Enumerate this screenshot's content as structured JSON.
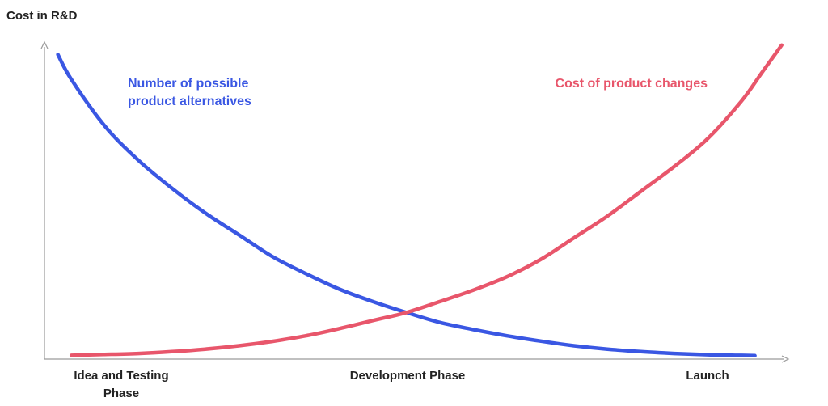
{
  "chart_data": {
    "type": "line",
    "title": "",
    "ylabel": "Cost in R&D",
    "xlabel": "",
    "grid": false,
    "legend": "none",
    "x_tick_labels": [
      {
        "lines": [
          "Idea and Testing",
          "Phase"
        ],
        "x": 0
      },
      {
        "lines": [
          "Development Phase"
        ],
        "x": 0.5
      },
      {
        "lines": [
          "Launch"
        ],
        "x": 1
      }
    ],
    "xlim": [
      -0.04,
      1.07
    ],
    "ylim": [
      0,
      1.02
    ],
    "series": [
      {
        "label_lines": [
          "Number of possible",
          "product alternatives"
        ],
        "color": "#3a57e3",
        "x": [
          -0.02,
          0.0,
          0.05,
          0.1,
          0.15,
          0.2,
          0.25,
          0.3,
          0.35,
          0.4,
          0.45,
          0.5,
          0.55,
          0.6,
          0.65,
          0.7,
          0.75,
          0.8,
          0.85,
          0.9,
          0.95,
          1.0,
          1.02
        ],
        "y": [
          0.98,
          0.9,
          0.75,
          0.64,
          0.55,
          0.47,
          0.4,
          0.33,
          0.275,
          0.225,
          0.185,
          0.15,
          0.118,
          0.095,
          0.075,
          0.058,
          0.043,
          0.032,
          0.024,
          0.018,
          0.014,
          0.012,
          0.011
        ]
      },
      {
        "label_lines": [
          "Cost of product changes"
        ],
        "color": "#e8566b",
        "x": [
          0.0,
          0.05,
          0.1,
          0.15,
          0.2,
          0.25,
          0.3,
          0.35,
          0.4,
          0.45,
          0.5,
          0.55,
          0.6,
          0.65,
          0.7,
          0.75,
          0.8,
          0.85,
          0.9,
          0.95,
          1.0,
          1.03,
          1.06
        ],
        "y": [
          0.012,
          0.015,
          0.018,
          0.024,
          0.032,
          0.043,
          0.057,
          0.075,
          0.098,
          0.124,
          0.15,
          0.185,
          0.222,
          0.265,
          0.32,
          0.39,
          0.46,
          0.54,
          0.62,
          0.71,
          0.83,
          0.92,
          1.01
        ]
      }
    ]
  }
}
